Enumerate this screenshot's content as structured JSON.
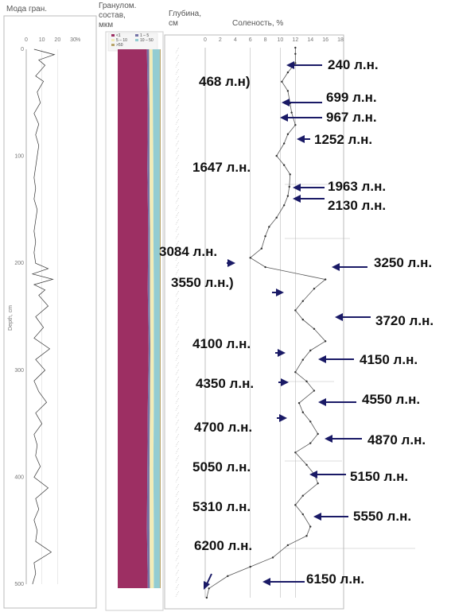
{
  "headers": {
    "mode_panel": "Мода гран.",
    "grain_panel": "Гранулом. состав, мкм",
    "depth_panel": "Глубина, см",
    "salinity_panel": "Соленость, %"
  },
  "mode_panel": {
    "x_ticks": [
      "0",
      "10",
      "20",
      "30"
    ],
    "x_unit": "%",
    "y_ticks": [
      "0",
      "100",
      "200",
      "300",
      "400",
      "500"
    ],
    "y_label": "Depth, cm"
  },
  "grain_panel": {
    "legend": [
      "<1",
      "1 – 5",
      "5 – 10",
      "10 – 50",
      ">50"
    ],
    "colors": {
      "<1": "#9d2f63",
      "1 – 5": "#7472a6",
      "5 – 10": "#f2ecb8",
      "10 – 50": "#93ccd2",
      ">50": "#b9a56a"
    }
  },
  "salinity_panel": {
    "x_ticks": [
      "0",
      "2",
      "4",
      "6",
      "8",
      "10",
      "12",
      "14",
      "16",
      "18"
    ]
  },
  "annotations": [
    {
      "text": "240 л.н."
    },
    {
      "text": "468 л.н)"
    },
    {
      "text": "699 л.н."
    },
    {
      "text": "967 л.н."
    },
    {
      "text": "1252 л.н."
    },
    {
      "text": "1647 л.н."
    },
    {
      "text": "1963 л.н."
    },
    {
      "text": "2130 л.н."
    },
    {
      "text": "3084 л.н."
    },
    {
      "text": "3250 л.н."
    },
    {
      "text": "3550 л.н.)"
    },
    {
      "text": "3720 л.н."
    },
    {
      "text": "4100 л.н."
    },
    {
      "text": "4150 л.н."
    },
    {
      "text": "4350 л.н."
    },
    {
      "text": "4550 л.н."
    },
    {
      "text": "4700 л.н."
    },
    {
      "text": "4870 л.н."
    },
    {
      "text": "5050 л.н."
    },
    {
      "text": "5150 л.н."
    },
    {
      "text": "5310 л.н."
    },
    {
      "text": "5550 л.н."
    },
    {
      "text": "6200 л.н."
    },
    {
      "text": "6150 л.н."
    }
  ],
  "chart_data": [
    {
      "type": "line",
      "title": "Мода гран.",
      "xlabel": "%",
      "ylabel": "Depth, cm",
      "xlim": [
        0,
        30
      ],
      "ylim": [
        0,
        500
      ],
      "depth": [
        0,
        5,
        10,
        15,
        20,
        25,
        30,
        40,
        50,
        60,
        70,
        80,
        90,
        100,
        110,
        120,
        130,
        140,
        150,
        160,
        170,
        180,
        190,
        200,
        205,
        210,
        215,
        220,
        225,
        230,
        240,
        250,
        260,
        270,
        280,
        290,
        300,
        310,
        320,
        330,
        340,
        350,
        360,
        370,
        380,
        390,
        400,
        410,
        420,
        430,
        440,
        450,
        460,
        470,
        480,
        490,
        500
      ],
      "values": [
        5,
        18,
        8,
        12,
        9,
        6,
        11,
        7,
        9,
        5,
        8,
        6,
        8,
        7,
        6,
        5,
        6,
        5,
        7,
        6,
        5,
        6,
        5,
        6,
        14,
        4,
        17,
        5,
        12,
        8,
        14,
        6,
        11,
        5,
        15,
        6,
        12,
        5,
        8,
        13,
        6,
        10,
        5,
        7,
        6,
        9,
        5,
        14,
        6,
        8,
        5,
        7,
        6,
        16,
        5,
        6,
        4
      ]
    },
    {
      "type": "area",
      "title": "Гранулом. состав, мкм",
      "series": [
        {
          "name": "<1",
          "values": [
            68,
            70,
            69,
            71,
            70,
            72,
            70,
            69,
            68,
            70
          ]
        },
        {
          "name": "1 – 5",
          "values": [
            5,
            4,
            5,
            4,
            5,
            4,
            5,
            5,
            6,
            5
          ]
        },
        {
          "name": "5 – 10",
          "values": [
            8,
            8,
            9,
            8,
            9,
            8,
            9,
            9,
            10,
            9
          ]
        },
        {
          "name": "10 – 50",
          "values": [
            17,
            16,
            15,
            15,
            14,
            14,
            14,
            15,
            14,
            14
          ]
        },
        {
          "name": ">50",
          "values": [
            2,
            2,
            2,
            2,
            2,
            2,
            2,
            2,
            2,
            2
          ]
        }
      ]
    },
    {
      "type": "line",
      "title": "Соленость, %",
      "xlabel": "Соленость, %",
      "ylabel": "Глубина, см",
      "xlim": [
        0,
        18
      ],
      "depth": [
        0,
        2,
        5,
        8,
        11,
        14,
        18,
        21,
        25,
        28,
        31,
        35,
        38,
        41,
        45,
        48,
        51,
        55,
        58,
        61,
        65,
        68,
        71,
        75,
        78,
        82,
        85,
        88,
        91,
        95,
        98,
        101,
        105,
        108,
        111,
        115,
        118,
        121,
        125,
        128,
        131,
        135,
        138,
        141,
        145,
        148,
        151,
        155,
        158,
        161,
        165,
        168,
        171,
        175,
        178
      ],
      "values": [
        12.0,
        12.0,
        12.0,
        11.0,
        10.2,
        11.0,
        11.3,
        11.5,
        12.0,
        11.0,
        10.5,
        9.5,
        10.5,
        11.3,
        11.2,
        11.0,
        10.5,
        9.5,
        8.5,
        8.0,
        7.5,
        6.0,
        8.0,
        16.0,
        14.5,
        13.0,
        12.0,
        13.0,
        14.5,
        16.0,
        14.0,
        13.0,
        12.0,
        13.5,
        14.5,
        12.5,
        13.0,
        14.0,
        15.0,
        14.0,
        12.0,
        13.5,
        14.5,
        15.0,
        13.0,
        12.0,
        13.0,
        14.0,
        13.5,
        11.0,
        9.0,
        6.0,
        3.0,
        0.5,
        0.2
      ]
    }
  ]
}
